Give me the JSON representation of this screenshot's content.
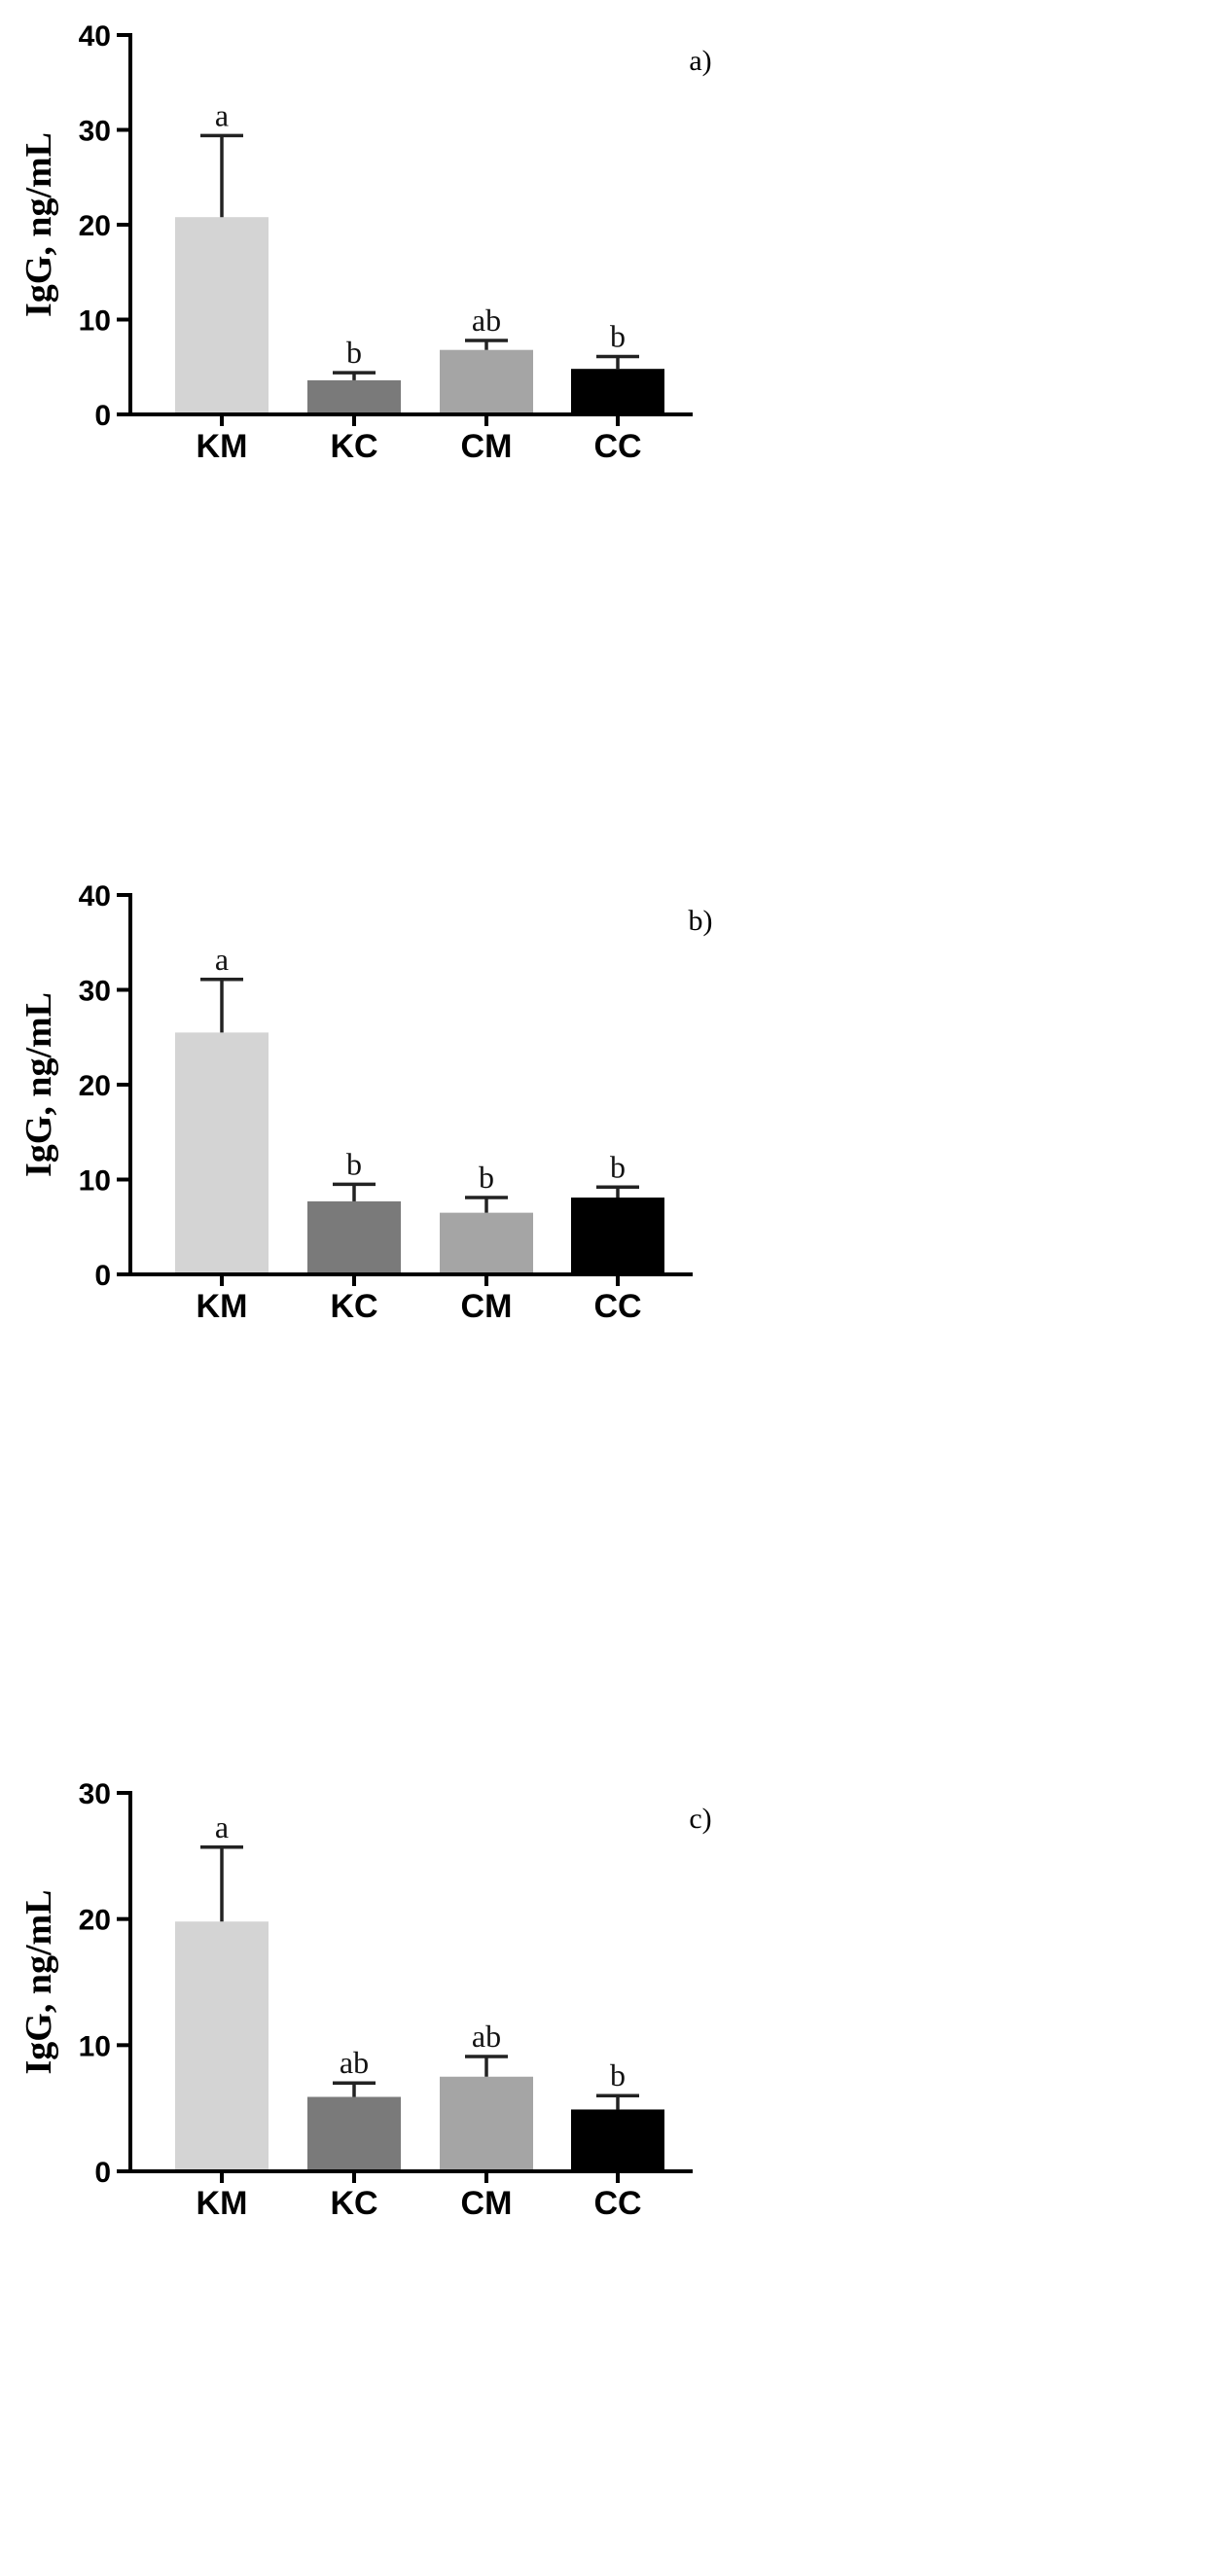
{
  "chart_data": [
    {
      "type": "bar",
      "panel_label": "a)",
      "ylabel": "IgG, ng/mL",
      "ylim": [
        0,
        40
      ],
      "yticks": [
        "0",
        "10",
        "20",
        "30",
        "40"
      ],
      "categories": [
        "KM",
        "KC",
        "CM",
        "CC"
      ],
      "values": [
        20.8,
        3.6,
        6.8,
        4.8
      ],
      "errors": [
        8.6,
        0.8,
        1.0,
        1.3
      ],
      "significance": [
        "a",
        "b",
        "ab",
        "b"
      ],
      "bar_colors": [
        "#d4d4d4",
        "#7a7a7a",
        "#a5a5a5",
        "#000000"
      ]
    },
    {
      "type": "bar",
      "panel_label": "b)",
      "ylabel": "IgG, ng/mL",
      "ylim": [
        0,
        40
      ],
      "yticks": [
        "0",
        "10",
        "20",
        "30",
        "40"
      ],
      "categories": [
        "KM",
        "KC",
        "CM",
        "CC"
      ],
      "values": [
        25.5,
        7.7,
        6.5,
        8.1
      ],
      "errors": [
        5.6,
        1.8,
        1.6,
        1.1
      ],
      "significance": [
        "a",
        "b",
        "b",
        "b"
      ],
      "bar_colors": [
        "#d4d4d4",
        "#7a7a7a",
        "#a5a5a5",
        "#000000"
      ]
    },
    {
      "type": "bar",
      "panel_label": "c)",
      "ylabel": "IgG, ng/mL",
      "ylim": [
        0,
        30
      ],
      "yticks": [
        "0",
        "10",
        "20",
        "30"
      ],
      "categories": [
        "KM",
        "KC",
        "CM",
        "CC"
      ],
      "values": [
        19.8,
        5.9,
        7.5,
        4.9
      ],
      "errors": [
        5.9,
        1.1,
        1.6,
        1.1
      ],
      "significance": [
        "a",
        "ab",
        "ab",
        "b"
      ],
      "bar_colors": [
        "#d4d4d4",
        "#7a7a7a",
        "#a5a5a5",
        "#000000"
      ]
    }
  ]
}
